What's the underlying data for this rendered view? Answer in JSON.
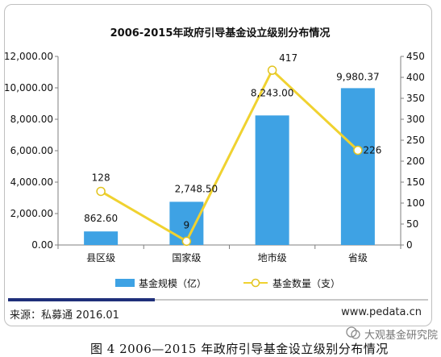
{
  "chart_data": {
    "type": "bar+line",
    "title": "2006-2015年政府引导基金设立级别分布情况",
    "categories": [
      "县区级",
      "国家级",
      "地市级",
      "省级"
    ],
    "series": [
      {
        "name": "基金规模（亿）",
        "type": "bar",
        "axis": "left",
        "values": [
          862.6,
          2748.5,
          8243.0,
          9980.37
        ],
        "labels": [
          "862.60",
          "2,748.50",
          "8,243.00",
          "9,980.37"
        ],
        "color": "#3ea2e4"
      },
      {
        "name": "基金数量（支）",
        "type": "line",
        "axis": "right",
        "values": [
          128,
          9,
          417,
          226
        ],
        "labels": [
          "128",
          "9",
          "417",
          "226"
        ],
        "color": "#f0d230"
      }
    ],
    "y_left": {
      "ylim": [
        0,
        12000
      ],
      "ticks": [
        "0.00",
        "2,000.00",
        "4,000.00",
        "6,000.00",
        "8,000.00",
        "10,000.00",
        "12,000.00"
      ]
    },
    "y_right": {
      "ylim": [
        0,
        450
      ],
      "ticks": [
        "0",
        "50",
        "100",
        "150",
        "200",
        "250",
        "300",
        "350",
        "400",
        "450"
      ]
    },
    "legend_position": "bottom",
    "grid": false
  },
  "footer": {
    "source": "来源：私募通 2016.01",
    "site": "www.pedata.cn",
    "accent_bar_color": "#1f2f7a"
  },
  "caption": "图 4 2006—2015 年政府引导基金设立级别分布情况",
  "watermark": "大观基金研究院"
}
